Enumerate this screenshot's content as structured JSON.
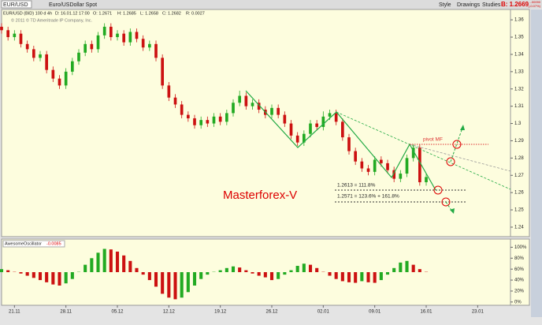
{
  "toolbar": {
    "symbol": "EUR/USD",
    "description": "Euro/USDollar Spot",
    "style": "Style",
    "drawings": "Drawings",
    "studies": "Studies",
    "bid": "B: 1.2669",
    "change": "-.00090",
    "change_pct": "(-0.07%)"
  },
  "info": {
    "symbol": "EUR/USD (BID) 100 d 4h",
    "date": "D: 16.01.12 17:00",
    "open": "O: 1.2671",
    "high": "H: 1.2685",
    "low": "L: 1.2658",
    "close": "C: 1.2682",
    "range": "R: 0.0027",
    "copyright": "© 2011 © TD Ameritrade IP Company, Inc."
  },
  "chart_data": [
    {
      "type": "candlestick",
      "annotations": {
        "brand": "Masterforex-V",
        "pivot": "pivot MF",
        "level1": "1.2613 = 111.8%",
        "level2": "1.2571 = 123.6% + 161.8%"
      },
      "open": [
        1.356,
        1.354,
        1.35,
        1.352,
        1.346,
        1.343,
        1.338,
        1.34,
        1.331,
        1.326,
        1.322,
        1.33,
        1.336,
        1.341,
        1.346,
        1.343,
        1.351,
        1.356,
        1.35,
        1.352,
        1.347,
        1.353,
        1.349,
        1.344,
        1.346,
        1.338,
        1.322,
        1.315,
        1.311,
        1.305,
        1.303,
        1.299,
        1.302,
        1.3,
        1.304,
        1.301,
        1.306,
        1.312,
        1.316,
        1.31,
        1.312,
        1.308,
        1.305,
        1.309,
        1.305,
        1.3,
        1.293,
        1.289,
        1.294,
        1.3,
        1.298,
        1.304,
        1.306,
        1.301,
        1.292,
        1.284,
        1.278,
        1.274,
        1.272,
        1.279,
        1.277,
        1.273,
        1.268,
        1.271,
        1.28,
        1.286,
        1.266
      ],
      "high": [
        1.358,
        1.356,
        1.354,
        1.354,
        1.348,
        1.345,
        1.342,
        1.342,
        1.333,
        1.328,
        1.332,
        1.338,
        1.343,
        1.348,
        1.348,
        1.353,
        1.358,
        1.358,
        1.354,
        1.354,
        1.355,
        1.355,
        1.351,
        1.348,
        1.348,
        1.34,
        1.324,
        1.317,
        1.313,
        1.307,
        1.305,
        1.304,
        1.304,
        1.306,
        1.306,
        1.308,
        1.314,
        1.319,
        1.318,
        1.314,
        1.314,
        1.31,
        1.311,
        1.311,
        1.307,
        1.302,
        1.295,
        1.296,
        1.302,
        1.302,
        1.307,
        1.308,
        1.308,
        1.303,
        1.294,
        1.286,
        1.28,
        1.276,
        1.281,
        1.281,
        1.279,
        1.275,
        1.273,
        1.282,
        1.288,
        1.288,
        1.271
      ],
      "low": [
        1.352,
        1.348,
        1.348,
        1.344,
        1.341,
        1.336,
        1.336,
        1.329,
        1.324,
        1.32,
        1.32,
        1.328,
        1.334,
        1.339,
        1.341,
        1.341,
        1.349,
        1.348,
        1.348,
        1.345,
        1.345,
        1.347,
        1.342,
        1.342,
        1.336,
        1.32,
        1.313,
        1.309,
        1.303,
        1.301,
        1.297,
        1.297,
        1.298,
        1.298,
        1.299,
        1.299,
        1.304,
        1.31,
        1.308,
        1.308,
        1.306,
        1.303,
        1.303,
        1.303,
        1.298,
        1.291,
        1.287,
        1.287,
        1.292,
        1.296,
        1.296,
        1.302,
        1.299,
        1.29,
        1.282,
        1.276,
        1.272,
        1.27,
        1.27,
        1.275,
        1.271,
        1.266,
        1.266,
        1.269,
        1.278,
        1.264,
        1.264
      ],
      "close": [
        1.354,
        1.35,
        1.352,
        1.346,
        1.343,
        1.338,
        1.34,
        1.331,
        1.326,
        1.322,
        1.33,
        1.336,
        1.341,
        1.346,
        1.343,
        1.351,
        1.356,
        1.35,
        1.352,
        1.347,
        1.353,
        1.349,
        1.344,
        1.346,
        1.338,
        1.322,
        1.315,
        1.311,
        1.305,
        1.303,
        1.299,
        1.302,
        1.3,
        1.304,
        1.301,
        1.306,
        1.312,
        1.316,
        1.31,
        1.312,
        1.308,
        1.305,
        1.309,
        1.305,
        1.3,
        1.293,
        1.289,
        1.294,
        1.3,
        1.298,
        1.304,
        1.306,
        1.301,
        1.292,
        1.284,
        1.278,
        1.274,
        1.272,
        1.279,
        1.277,
        1.273,
        1.268,
        1.271,
        1.28,
        1.286,
        1.266,
        1.269
      ],
      "up_color": "#22aa22",
      "down_color": "#cc1111",
      "xlim": [
        0,
        79.1
      ],
      "xticks": [
        {
          "value": 2,
          "label": "21.11"
        },
        {
          "value": 10,
          "label": "28.11"
        },
        {
          "value": 18,
          "label": "05.12"
        },
        {
          "value": 26,
          "label": "12.12"
        },
        {
          "value": 34,
          "label": "19.12"
        },
        {
          "value": 42,
          "label": "26.12"
        },
        {
          "value": 50,
          "label": "02.01"
        },
        {
          "value": 58,
          "label": "09.01"
        },
        {
          "value": 66,
          "label": "16.01"
        },
        {
          "value": 74,
          "label": "23.01"
        }
      ],
      "ylim": [
        1.2345,
        1.366
      ],
      "yticks": [
        1.36,
        1.35,
        1.34,
        1.33,
        1.32,
        1.31,
        1.3,
        1.29,
        1.28,
        1.27,
        1.26,
        1.25,
        1.24
      ]
    },
    {
      "type": "oscillator",
      "title": "AwesomeOscillator",
      "value_label": "-0.0085",
      "values": [
        60,
        58,
        55,
        52,
        48,
        44,
        40,
        36,
        32,
        30,
        34,
        42,
        55,
        68,
        80,
        90,
        97,
        96,
        92,
        85,
        75,
        62,
        50,
        40,
        28,
        15,
        8,
        5,
        8,
        18,
        30,
        42,
        50,
        55,
        58,
        62,
        65,
        63,
        58,
        52,
        48,
        45,
        40,
        42,
        50,
        58,
        66,
        70,
        68,
        62,
        55,
        48,
        42,
        38,
        36,
        35,
        38,
        36,
        35,
        40,
        50,
        62,
        72,
        75,
        68,
        60,
        55
      ],
      "up_color": "#22aa22",
      "down_color": "#cc1111",
      "ylim": [
        -6,
        115
      ],
      "yticks": [
        {
          "value": 100,
          "label": "100%"
        },
        {
          "value": 80,
          "label": "80%"
        },
        {
          "value": 60,
          "label": "60%"
        },
        {
          "value": 40,
          "label": "40%"
        },
        {
          "value": 20,
          "label": "20%"
        },
        {
          "value": 0,
          "label": "0%"
        }
      ]
    }
  ]
}
